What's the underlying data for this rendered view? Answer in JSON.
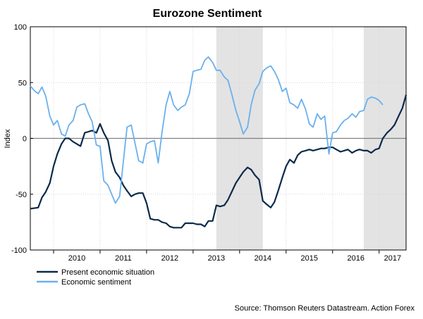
{
  "chart_data": {
    "type": "line",
    "title": "Eurozone Sentiment",
    "ylabel": "Index",
    "xlabel": "",
    "ylim": [
      -100,
      100
    ],
    "yticks": [
      100,
      50,
      0,
      -50,
      -100
    ],
    "xlim": [
      2009.5,
      2017.58
    ],
    "year_labels": [
      "2010",
      "2011",
      "2012",
      "2013",
      "2014",
      "2015",
      "2016",
      "2017"
    ],
    "shaded_periods": [
      [
        2013.5,
        2014.5
      ],
      [
        2016.67,
        2017.58
      ]
    ],
    "zero_line": true,
    "grid": true,
    "legend_position": "bottom-left",
    "series": [
      {
        "name": "Present economic situation",
        "color": "#0b2a4a",
        "points": [
          [
            2009.5,
            -63
          ],
          [
            2009.67,
            -62
          ],
          [
            2009.75,
            -53
          ],
          [
            2009.83,
            -48
          ],
          [
            2009.92,
            -40
          ],
          [
            2010.0,
            -25
          ],
          [
            2010.08,
            -14
          ],
          [
            2010.17,
            -5
          ],
          [
            2010.25,
            0
          ],
          [
            2010.33,
            0
          ],
          [
            2010.42,
            -3
          ],
          [
            2010.5,
            -5
          ],
          [
            2010.58,
            -7
          ],
          [
            2010.67,
            5
          ],
          [
            2010.75,
            6
          ],
          [
            2010.83,
            7
          ],
          [
            2010.92,
            5
          ],
          [
            2011.0,
            13
          ],
          [
            2011.08,
            5
          ],
          [
            2011.17,
            -2
          ],
          [
            2011.25,
            -20
          ],
          [
            2011.33,
            -30
          ],
          [
            2011.42,
            -35
          ],
          [
            2011.5,
            -42
          ],
          [
            2011.58,
            -47
          ],
          [
            2011.67,
            -52
          ],
          [
            2011.75,
            -50
          ],
          [
            2011.83,
            -49
          ],
          [
            2011.92,
            -49
          ],
          [
            2012.0,
            -58
          ],
          [
            2012.08,
            -72
          ],
          [
            2012.17,
            -73
          ],
          [
            2012.25,
            -73
          ],
          [
            2012.33,
            -75
          ],
          [
            2012.42,
            -76
          ],
          [
            2012.5,
            -79
          ],
          [
            2012.58,
            -80
          ],
          [
            2012.67,
            -80
          ],
          [
            2012.75,
            -80
          ],
          [
            2012.83,
            -76
          ],
          [
            2012.92,
            -76
          ],
          [
            2013.0,
            -76
          ],
          [
            2013.08,
            -77
          ],
          [
            2013.17,
            -77
          ],
          [
            2013.25,
            -79
          ],
          [
            2013.33,
            -74
          ],
          [
            2013.42,
            -74
          ],
          [
            2013.5,
            -60
          ],
          [
            2013.58,
            -61
          ],
          [
            2013.67,
            -60
          ],
          [
            2013.75,
            -55
          ],
          [
            2013.83,
            -48
          ],
          [
            2013.92,
            -40
          ],
          [
            2014.0,
            -35
          ],
          [
            2014.08,
            -30
          ],
          [
            2014.17,
            -26
          ],
          [
            2014.25,
            -28
          ],
          [
            2014.33,
            -33
          ],
          [
            2014.42,
            -37
          ],
          [
            2014.5,
            -56
          ],
          [
            2014.58,
            -59
          ],
          [
            2014.67,
            -62
          ],
          [
            2014.75,
            -57
          ],
          [
            2014.83,
            -47
          ],
          [
            2014.92,
            -35
          ],
          [
            2015.0,
            -25
          ],
          [
            2015.08,
            -19
          ],
          [
            2015.17,
            -22
          ],
          [
            2015.25,
            -15
          ],
          [
            2015.33,
            -12
          ],
          [
            2015.42,
            -11
          ],
          [
            2015.5,
            -10
          ],
          [
            2015.58,
            -11
          ],
          [
            2015.67,
            -10
          ],
          [
            2015.75,
            -9
          ],
          [
            2015.83,
            -9
          ],
          [
            2015.92,
            -8
          ],
          [
            2016.0,
            -8
          ],
          [
            2016.08,
            -10
          ],
          [
            2016.17,
            -12
          ],
          [
            2016.25,
            -11
          ],
          [
            2016.33,
            -10
          ],
          [
            2016.42,
            -13
          ],
          [
            2016.5,
            -11
          ],
          [
            2016.58,
            -10
          ],
          [
            2016.67,
            -11
          ],
          [
            2016.75,
            -11
          ],
          [
            2016.83,
            -13
          ],
          [
            2016.92,
            -10
          ],
          [
            2017.0,
            -9
          ],
          [
            2017.08,
            0
          ],
          [
            2017.17,
            5
          ],
          [
            2017.25,
            8
          ],
          [
            2017.33,
            12
          ],
          [
            2017.42,
            20
          ],
          [
            2017.5,
            27
          ],
          [
            2017.58,
            39
          ]
        ]
      },
      {
        "name": "Economic sentiment",
        "color": "#6ab0ee",
        "points": [
          [
            2009.5,
            47
          ],
          [
            2009.58,
            43
          ],
          [
            2009.67,
            40
          ],
          [
            2009.75,
            46
          ],
          [
            2009.83,
            38
          ],
          [
            2009.92,
            20
          ],
          [
            2010.0,
            12
          ],
          [
            2010.08,
            16
          ],
          [
            2010.17,
            4
          ],
          [
            2010.25,
            2
          ],
          [
            2010.33,
            12
          ],
          [
            2010.42,
            16
          ],
          [
            2010.5,
            28
          ],
          [
            2010.58,
            30
          ],
          [
            2010.67,
            31
          ],
          [
            2010.75,
            22
          ],
          [
            2010.83,
            15
          ],
          [
            2010.92,
            -6
          ],
          [
            2011.0,
            -7
          ],
          [
            2011.08,
            -38
          ],
          [
            2011.17,
            -42
          ],
          [
            2011.25,
            -50
          ],
          [
            2011.33,
            -58
          ],
          [
            2011.42,
            -52
          ],
          [
            2011.5,
            -21
          ],
          [
            2011.58,
            10
          ],
          [
            2011.67,
            12
          ],
          [
            2011.75,
            -4
          ],
          [
            2011.83,
            -20
          ],
          [
            2011.92,
            -22
          ],
          [
            2012.0,
            -5
          ],
          [
            2012.08,
            -3
          ],
          [
            2012.17,
            -2
          ],
          [
            2012.25,
            -22
          ],
          [
            2012.33,
            5
          ],
          [
            2012.42,
            30
          ],
          [
            2012.5,
            42
          ],
          [
            2012.58,
            30
          ],
          [
            2012.67,
            25
          ],
          [
            2012.75,
            28
          ],
          [
            2012.83,
            30
          ],
          [
            2012.92,
            40
          ],
          [
            2013.0,
            60
          ],
          [
            2013.08,
            61
          ],
          [
            2013.17,
            62
          ],
          [
            2013.25,
            70
          ],
          [
            2013.33,
            73
          ],
          [
            2013.42,
            68
          ],
          [
            2013.5,
            61
          ],
          [
            2013.58,
            61
          ],
          [
            2013.67,
            55
          ],
          [
            2013.75,
            52
          ],
          [
            2013.83,
            40
          ],
          [
            2013.92,
            25
          ],
          [
            2014.0,
            15
          ],
          [
            2014.08,
            4
          ],
          [
            2014.17,
            10
          ],
          [
            2014.25,
            30
          ],
          [
            2014.33,
            43
          ],
          [
            2014.42,
            49
          ],
          [
            2014.5,
            60
          ],
          [
            2014.58,
            63
          ],
          [
            2014.67,
            65
          ],
          [
            2014.75,
            60
          ],
          [
            2014.83,
            53
          ],
          [
            2014.92,
            42
          ],
          [
            2015.0,
            45
          ],
          [
            2015.08,
            32
          ],
          [
            2015.17,
            30
          ],
          [
            2015.25,
            27
          ],
          [
            2015.33,
            35
          ],
          [
            2015.42,
            26
          ],
          [
            2015.5,
            13
          ],
          [
            2015.58,
            10
          ],
          [
            2015.67,
            22
          ],
          [
            2015.75,
            17
          ],
          [
            2015.83,
            20
          ],
          [
            2015.92,
            -14
          ],
          [
            2016.0,
            5
          ],
          [
            2016.08,
            6
          ],
          [
            2016.17,
            12
          ],
          [
            2016.25,
            16
          ],
          [
            2016.33,
            18
          ],
          [
            2016.42,
            22
          ],
          [
            2016.5,
            19
          ],
          [
            2016.58,
            24
          ],
          [
            2016.67,
            25
          ],
          [
            2016.75,
            35
          ],
          [
            2016.83,
            37
          ],
          [
            2016.92,
            36
          ],
          [
            2017.0,
            34
          ],
          [
            2017.08,
            30
          ]
        ]
      }
    ],
    "source": "Source: Thomson Reuters Datastream. Action Forex"
  }
}
